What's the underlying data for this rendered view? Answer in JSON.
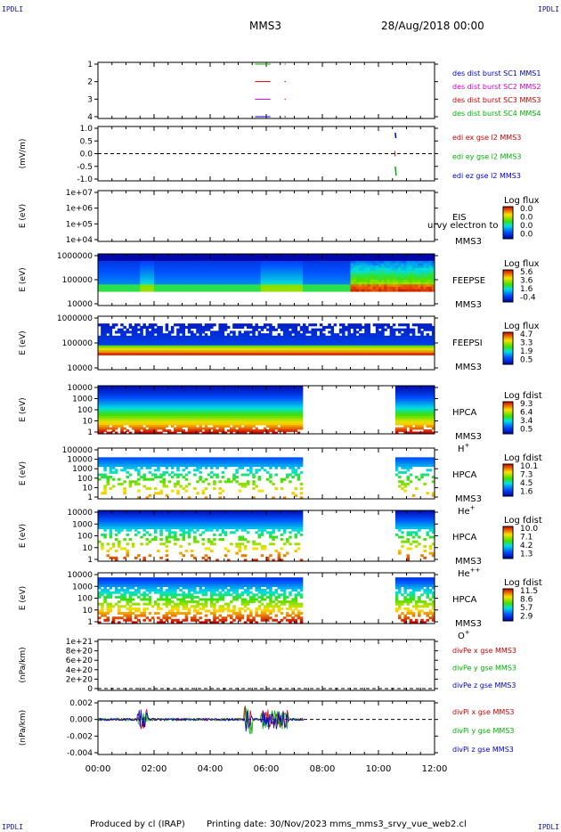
{
  "header": {
    "corner_tl": "IPDLI",
    "corner_tr": "IPDLI",
    "corner_bl": "IPDLI",
    "corner_br": "IPDLI",
    "spacecraft": "MMS3",
    "datetime": "28/Aug/2018 00:00"
  },
  "footer": {
    "produced_by": "Produced by cl (IRAP)",
    "printing_date": "Printing date: 30/Nov/2023",
    "filename": "mms_mms3_srvy_vue_web2.cl"
  },
  "colors": {
    "blue": "#0000cc",
    "red": "#cc0000",
    "green": "#00b000",
    "magenta": "#cc00cc",
    "panel_bg": "#ffffff",
    "spec_bg": "#1030c0"
  },
  "chart_data": [
    {
      "id": "burst",
      "type": "line",
      "ylabel": "",
      "yticks": [
        "1",
        "2",
        "3",
        "4"
      ],
      "legend": [
        {
          "text": "des dist burst SC1 MMS1",
          "color": "#0000cc"
        },
        {
          "text": "des dist burst SC2 MMS2",
          "color": "#cc00cc"
        },
        {
          "text": "des dist burst SC3 MMS3",
          "color": "#cc0000"
        },
        {
          "text": "des dist burst SC4 MMS4",
          "color": "#00b000"
        }
      ],
      "series": [
        {
          "name": "des dist burst SC1 MMS1",
          "y": 1,
          "intervals": [
            [
              5.6,
              6.15
            ],
            [
              6.65,
              6.7
            ]
          ]
        },
        {
          "name": "des dist burst SC2 MMS2",
          "y": 2,
          "intervals": [
            [
              5.6,
              6.15
            ],
            [
              6.65,
              6.7
            ]
          ]
        },
        {
          "name": "des dist burst SC3 MMS3",
          "y": 3,
          "intervals": [
            [
              5.6,
              6.15
            ],
            [
              6.65,
              6.7
            ]
          ]
        },
        {
          "name": "des dist burst SC4 MMS4",
          "y": 4,
          "intervals": [
            [
              5.6,
              6.15
            ],
            [
              6.65,
              6.7
            ]
          ]
        }
      ]
    },
    {
      "id": "edi",
      "type": "line",
      "ylabel": "(mV/m)",
      "yticks": [
        "1.0",
        "0.5",
        "0.0",
        "-0.5",
        "-1.0"
      ],
      "legend": [
        {
          "text": "edi ex gse l2 MMS3",
          "color": "#cc0000"
        },
        {
          "text": "edi ey gse l2 MMS3",
          "color": "#00b000"
        },
        {
          "text": "edi ez gse l2 MMS3",
          "color": "#0000cc"
        }
      ]
    },
    {
      "id": "eis",
      "type": "heatmap",
      "ylabel": "E (eV)",
      "yticks": [
        "1e+07",
        "1e+06",
        "1e+05",
        "1e+04"
      ],
      "instrument": [
        "EIS",
        "MMS3"
      ],
      "overlay_text": "urvy electron to",
      "colorbar": {
        "title": "Log flux",
        "ticks": [
          "0.0",
          "0.0",
          "0.0",
          "0.0"
        ]
      }
    },
    {
      "id": "feepse",
      "type": "heatmap",
      "ylabel": "E (eV)",
      "yticks": [
        "1000000",
        "100000",
        "10000"
      ],
      "instrument": [
        "FEEPSE",
        "MMS3"
      ],
      "colorbar": {
        "title": "Log flux",
        "ticks": [
          "5.6",
          "3.6",
          "1.6",
          "-0.4"
        ]
      }
    },
    {
      "id": "feepsi",
      "type": "heatmap",
      "ylabel": "E (eV)",
      "yticks": [
        "1000000",
        "100000",
        "10000"
      ],
      "instrument": [
        "FEEPSI",
        "MMS3"
      ],
      "colorbar": {
        "title": "Log flux",
        "ticks": [
          "4.7",
          "3.3",
          "1.9",
          "0.5"
        ]
      }
    },
    {
      "id": "hpca_h",
      "type": "heatmap",
      "ylabel": "E (eV)",
      "yticks": [
        "10000",
        "1000",
        "100",
        "10",
        "1"
      ],
      "instrument": [
        "HPCA",
        "MMS3",
        "H+"
      ],
      "colorbar": {
        "title": "Log fdist",
        "ticks": [
          "9.3",
          "6.4",
          "3.4",
          "0.5"
        ]
      }
    },
    {
      "id": "hpca_he",
      "type": "heatmap",
      "ylabel": "E (eV)",
      "yticks": [
        "100000",
        "10000",
        "1000",
        "100",
        "10",
        "1"
      ],
      "instrument": [
        "HPCA",
        "MMS3",
        "He+"
      ],
      "colorbar": {
        "title": "Log fdist",
        "ticks": [
          "10.1",
          "7.3",
          "4.5",
          "1.6"
        ]
      }
    },
    {
      "id": "hpca_hepp",
      "type": "heatmap",
      "ylabel": "E (eV)",
      "yticks": [
        "10000",
        "1000",
        "100",
        "10",
        "1"
      ],
      "instrument": [
        "HPCA",
        "MMS3",
        "He++"
      ],
      "colorbar": {
        "title": "Log fdist",
        "ticks": [
          "10.0",
          "7.1",
          "4.2",
          "1.3"
        ]
      }
    },
    {
      "id": "hpca_o",
      "type": "heatmap",
      "ylabel": "E (eV)",
      "yticks": [
        "10000",
        "1000",
        "100",
        "10",
        "1"
      ],
      "instrument": [
        "HPCA",
        "MMS3",
        "O+"
      ],
      "colorbar": {
        "title": "Log fdist",
        "ticks": [
          "11.5",
          "8.6",
          "5.7",
          "2.9"
        ]
      }
    },
    {
      "id": "divpe",
      "type": "line",
      "ylabel": "(nPa/km)",
      "yticks": [
        "1e+21",
        "8e+20",
        "6e+20",
        "4e+20",
        "2e+20",
        "0"
      ],
      "legend": [
        {
          "text": "divPe x gse MMS3",
          "color": "#cc0000"
        },
        {
          "text": "divPe y gse MMS3",
          "color": "#00b000"
        },
        {
          "text": "divPe z gse MMS3",
          "color": "#0000cc"
        }
      ]
    },
    {
      "id": "divpi",
      "type": "line",
      "ylabel": "(nPa/km)",
      "yticks": [
        "0.002",
        "0.000",
        "-0.002",
        "-0.004"
      ],
      "legend": [
        {
          "text": "divPi x gse MMS3",
          "color": "#cc0000"
        },
        {
          "text": "divPi y gse MMS3",
          "color": "#00b000"
        },
        {
          "text": "divPi z gse MMS3",
          "color": "#0000cc"
        }
      ]
    }
  ],
  "xaxis": {
    "ticks": [
      "00:00",
      "02:00",
      "04:00",
      "06:00",
      "08:00",
      "10:00",
      "12:00"
    ],
    "range_hours": [
      0,
      12
    ]
  }
}
